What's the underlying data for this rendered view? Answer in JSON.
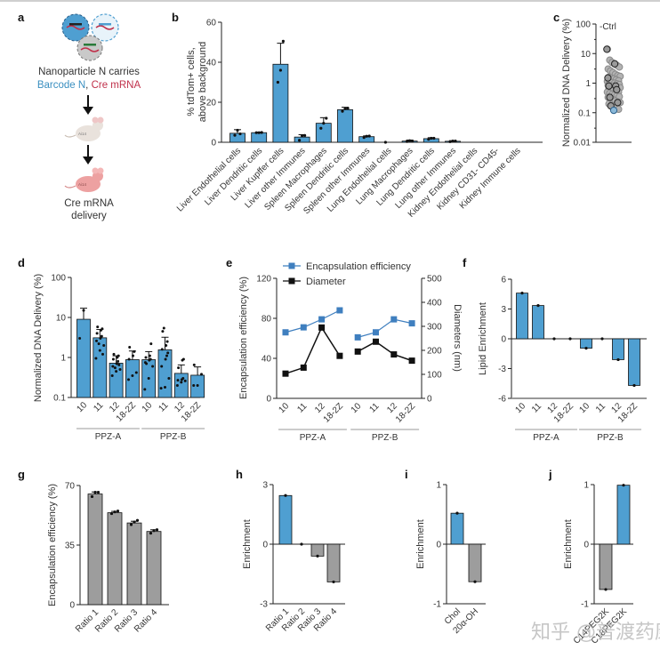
{
  "colors": {
    "blue": "#4f9fd1",
    "gray": "#9d9d9d",
    "dark": "#111111",
    "line_blue": "#3f7fbf",
    "text_blue": "#3a8fc0",
    "text_red": "#c0304a",
    "mouse_light": "#e9e2dc",
    "mouse_pink": "#eda1a1"
  },
  "panel_a": {
    "label": "a",
    "line1": "Nanoparticle N carries",
    "line2_blue": "Barcode N",
    "line2_sep": ", ",
    "line2_red": "Cre mRNA",
    "mouse_tag": "Ai14",
    "out1": "Cre mRNA",
    "out2": "delivery"
  },
  "watermark": "知乎 @普渡药康",
  "chart_data": [
    {
      "id": "b",
      "label": "b",
      "type": "bar",
      "ylabel": [
        "% tdTom+ cells,",
        "above background"
      ],
      "ylim": [
        0,
        60
      ],
      "yticks": [
        0,
        20,
        40,
        60
      ],
      "categories": [
        "Liver Endothelial cells",
        "Liver Dendritic cells",
        "Liver Kupffer cells",
        "Liver other Immunes",
        "Spleen Macrophages",
        "Spleen Dendritic cells",
        "Spleen other Immunes",
        "Lung Endothelial cells",
        "Lung Macrophages",
        "Lung Dendritic cells",
        "Lung other Immunes",
        "Kidney Endothelial cells",
        "Kidney CD31- CD45-",
        "Kidney Immune cells"
      ],
      "values": [
        4.5,
        4.8,
        39,
        2.6,
        9.5,
        16.3,
        2.8,
        0,
        0.6,
        1.8,
        0.5,
        0,
        0,
        0
      ],
      "errors": [
        1.8,
        0.3,
        10.5,
        1.2,
        2.8,
        1.2,
        0.4,
        0,
        0.5,
        0.5,
        0.3,
        0,
        0,
        0
      ],
      "points": [
        [
          3.5,
          6.0,
          4.2
        ],
        [
          4.8,
          4.8,
          4.9
        ],
        [
          30,
          36,
          50.5
        ],
        [
          1.0,
          3.2,
          3.4
        ],
        [
          7.0,
          9.5,
          12.0
        ],
        [
          15.5,
          16.8,
          17.0
        ],
        [
          2.4,
          3.0,
          3.1
        ],
        [
          0
        ],
        [
          0.4,
          0.8,
          0.6
        ],
        [
          1.5,
          2.0,
          2.0
        ],
        [
          0.3,
          0.6,
          0.6
        ],
        [],
        [],
        []
      ],
      "color": "blue"
    },
    {
      "id": "c",
      "label": "c",
      "type": "scatter",
      "ylabel": "Normalized DNA Delivery (%)",
      "yscale": "log",
      "ylim": [
        0.01,
        100
      ],
      "yticks": [
        "0.01",
        "0.1",
        "1",
        "10",
        "100"
      ],
      "annotation": "-Ctrl",
      "highlight_value": 0.12,
      "points": [
        14,
        6,
        5,
        4.5,
        4,
        3.5,
        3,
        2.6,
        2.3,
        2,
        1.8,
        1.7,
        1.6,
        1.5,
        1.4,
        1.3,
        1.2,
        1.15,
        1.1,
        1.05,
        1,
        0.95,
        0.9,
        0.85,
        0.8,
        0.8,
        0.75,
        0.7,
        0.7,
        0.65,
        0.6,
        0.6,
        0.55,
        0.5,
        0.5,
        0.45,
        0.42,
        0.4,
        0.38,
        0.35,
        0.33,
        0.3,
        0.28,
        0.25,
        0.23,
        0.22,
        0.2,
        0.18,
        0.17,
        0.15,
        0.13
      ],
      "dark_points": [
        14,
        4.5,
        1.5,
        0.8,
        0.8,
        0.6,
        0.33,
        0.22,
        0.17
      ]
    },
    {
      "id": "d",
      "label": "d",
      "type": "bar",
      "ylabel": "Normalized DNA Delivery (%)",
      "yscale": "log",
      "ylim": [
        0.1,
        100
      ],
      "yticks": [
        "0.1",
        "1",
        "10",
        "100"
      ],
      "categories": [
        "10",
        "11",
        "12",
        "18-2Z",
        "10",
        "11",
        "12",
        "18-2Z"
      ],
      "groups": [
        {
          "name": "PPZ-A",
          "span": [
            0,
            3
          ]
        },
        {
          "name": "PPZ-B",
          "span": [
            4,
            7
          ]
        }
      ],
      "values": [
        9,
        3.1,
        0.72,
        0.88,
        0.88,
        1.55,
        0.4,
        0.36
      ],
      "err_upper": [
        17,
        5.0,
        1.1,
        1.45,
        1.4,
        3.2,
        0.65,
        0.58
      ],
      "points": [
        [
          3,
          15
        ],
        [
          0.95,
          1.5,
          2.0,
          2.6,
          3.0,
          3.4,
          4.0,
          4.8,
          5.2,
          5.8,
          2.2,
          1.2
        ],
        [
          0.35,
          0.45,
          0.5,
          0.6,
          0.7,
          0.8,
          0.9,
          1.0,
          1.1,
          1.2,
          0.55,
          0.65
        ],
        [
          0.28,
          0.35,
          0.42,
          0.9,
          1.1,
          1.4,
          1.8
        ],
        [
          0.16,
          0.3,
          0.6,
          0.75,
          0.85,
          0.9,
          1.0,
          1.1,
          2.2,
          0.7
        ],
        [
          0.17,
          0.18,
          0.3,
          0.6,
          0.9,
          1.1,
          1.6,
          2.0,
          2.5,
          4.5,
          5.4,
          1.3
        ],
        [
          0.2,
          0.24,
          0.26,
          0.27,
          0.28,
          0.3,
          0.55,
          0.85,
          0.9
        ],
        [
          0.2,
          0.2,
          0.38,
          0.65
        ]
      ],
      "color": "blue"
    },
    {
      "id": "e",
      "label": "e",
      "type": "line",
      "ylabel_left": "Encapsulation efficiency (%)",
      "ylim_left": [
        0,
        120
      ],
      "yticks_left": [
        0,
        40,
        80,
        120
      ],
      "ylabel_right": "Diameters (nm)",
      "ylim_right": [
        0,
        500
      ],
      "yticks_right": [
        0,
        100,
        200,
        300,
        400,
        500
      ],
      "categories": [
        "10",
        "11",
        "12",
        "18-2Z",
        "10",
        "11",
        "12",
        "18-2Z"
      ],
      "groups": [
        {
          "name": "PPZ-A",
          "span": [
            0,
            3
          ]
        },
        {
          "name": "PPZ-B",
          "span": [
            4,
            7
          ]
        }
      ],
      "series": [
        {
          "name": "Encapsulation efficiency",
          "axis": "left",
          "color": "line_blue",
          "segments": [
            [
              66,
              71,
              79,
              88
            ],
            [
              61,
              66,
              79,
              75
            ]
          ]
        },
        {
          "name": "Diameter",
          "axis": "right",
          "color": "dark",
          "segments": [
            [
              103,
              128,
              295,
              177
            ],
            [
              195,
              236,
              183,
              157
            ]
          ]
        }
      ],
      "legend": "top"
    },
    {
      "id": "f",
      "label": "f",
      "type": "bar",
      "ylabel": "Lipid Enrichment",
      "ylim": [
        -6,
        6
      ],
      "yticks": [
        "-6",
        "-3",
        "0",
        "3",
        "6"
      ],
      "categories": [
        "10",
        "11",
        "12",
        "18-2Z",
        "10",
        "11",
        "12",
        "18-2Z"
      ],
      "groups": [
        {
          "name": "PPZ-A",
          "span": [
            0,
            3
          ]
        },
        {
          "name": "PPZ-B",
          "span": [
            4,
            7
          ]
        }
      ],
      "values": [
        4.6,
        3.35,
        0,
        0,
        -0.95,
        0,
        -2.1,
        -4.7
      ],
      "color": "blue"
    },
    {
      "id": "g",
      "label": "g",
      "type": "bar",
      "ylabel": "Encapsulation efficiency (%)",
      "ylim": [
        0,
        70
      ],
      "yticks": [
        "0",
        "35",
        "70"
      ],
      "categories": [
        "Ratio 1",
        "Ratio 2",
        "Ratio 3",
        "Ratio 4"
      ],
      "values": [
        65,
        54,
        48,
        43
      ],
      "errors": [
        1.2,
        0.8,
        1.0,
        1.0
      ],
      "points": [
        [
          63.5,
          66,
          66
        ],
        [
          53.5,
          54.5,
          55
        ],
        [
          47,
          48.5,
          49.5
        ],
        [
          42,
          43.5,
          44
        ]
      ],
      "color": "gray"
    },
    {
      "id": "h",
      "label": "h",
      "type": "bar",
      "ylabel": "Enrichment",
      "ylim": [
        -3,
        3
      ],
      "yticks": [
        "-3",
        "0",
        "3"
      ],
      "categories": [
        "Ratio 1",
        "Ratio 2",
        "Ratio 3",
        "Ratio 4"
      ],
      "values": [
        2.45,
        0,
        -0.6,
        -1.9
      ],
      "bar_colors": [
        "blue",
        "gray",
        "gray",
        "gray"
      ]
    },
    {
      "id": "i",
      "label": "i",
      "type": "bar",
      "ylabel": "Enrichment",
      "ylim": [
        -1,
        1
      ],
      "yticks": [
        "-1",
        "0",
        "1"
      ],
      "categories": [
        "Chol",
        "20α-OH"
      ],
      "values": [
        0.52,
        -0.63
      ],
      "bar_colors": [
        "blue",
        "gray"
      ]
    },
    {
      "id": "j",
      "label": "j",
      "type": "bar",
      "ylabel": "Enrichment",
      "ylim": [
        -1,
        1
      ],
      "yticks": [
        "-1",
        "0",
        "1"
      ],
      "categories": [
        "C14PEG2K",
        "C18PEG2K"
      ],
      "values": [
        -0.76,
        0.99
      ],
      "bar_colors": [
        "gray",
        "blue"
      ]
    }
  ]
}
